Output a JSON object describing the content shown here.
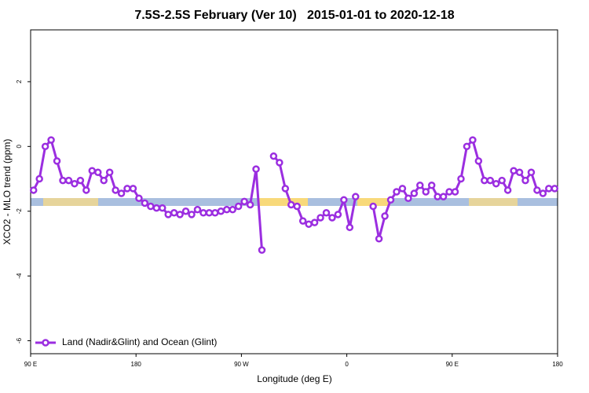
{
  "chart_data": {
    "type": "line",
    "title": "7.5S-2.5S February (Ver 10)   2015-01-01 to 2020-12-18",
    "xlabel": "Longitude (deg E)",
    "ylabel": "XCO2 - MLO trend (ppm)",
    "x": [
      92.5,
      97.5,
      102.5,
      107.5,
      112.5,
      117.5,
      122.5,
      127.5,
      132.5,
      137.5,
      142.5,
      147.5,
      152.5,
      157.5,
      162.5,
      167.5,
      172.5,
      177.5,
      182.5,
      187.5,
      192.5,
      197.5,
      202.5,
      207.5,
      212.5,
      217.5,
      222.5,
      227.5,
      232.5,
      237.5,
      242.5,
      247.5,
      252.5,
      257.5,
      262.5,
      267.5,
      272.5,
      277.5,
      282.5,
      287.5,
      292.5,
      297.5,
      302.5,
      307.5,
      312.5,
      317.5,
      322.5,
      327.5,
      332.5,
      337.5,
      342.5,
      347.5,
      352.5,
      357.5,
      362.5,
      367.5,
      372.5,
      377.5,
      382.5,
      387.5,
      392.5,
      397.5,
      402.5,
      407.5,
      412.5,
      417.5,
      422.5,
      427.5,
      432.5,
      437.5,
      442.5,
      447.5,
      452.5,
      457.5,
      462.5,
      467.5,
      472.5,
      477.5,
      482.5,
      487.5,
      492.5,
      497.5,
      502.5,
      507.5,
      512.5,
      517.5,
      522.5,
      527.5,
      532.5,
      537.5
    ],
    "series": [
      {
        "name": "Land (Nadir&Glint) and Ocean (Glint)",
        "color": "#9b2ee0",
        "values": [
          -1.35,
          -1.0,
          0.0,
          0.2,
          -0.45,
          -1.05,
          -1.05,
          -1.15,
          -1.05,
          -1.35,
          -0.75,
          -0.8,
          -1.05,
          -0.8,
          -1.35,
          -1.45,
          -1.3,
          -1.3,
          -1.6,
          -1.75,
          -1.85,
          -1.9,
          -1.9,
          -2.1,
          -2.05,
          -2.1,
          -2.0,
          -2.1,
          -1.95,
          -2.05,
          -2.05,
          -2.05,
          -2.0,
          -1.95,
          -1.95,
          -1.85,
          -1.7,
          -1.8,
          -0.7,
          -3.2,
          null,
          -0.3,
          -0.5,
          -1.3,
          -1.8,
          -1.85,
          -2.3,
          -2.4,
          -2.35,
          -2.2,
          -2.05,
          -2.2,
          -2.1,
          -1.65,
          -2.5,
          -1.55,
          null,
          null,
          -1.85,
          -2.85,
          -2.15,
          -1.65,
          -1.4,
          -1.3,
          -1.6,
          -1.45,
          -1.2,
          -1.4,
          -1.2,
          -1.55,
          -1.55,
          -1.4,
          -1.4,
          -1.0,
          0.0,
          0.2,
          -0.45,
          -1.05,
          -1.05,
          -1.15,
          -1.05,
          -1.35,
          -0.75,
          -0.8,
          -1.05,
          -0.8,
          -1.35,
          -1.45,
          -1.3,
          -1.3
        ]
      }
    ],
    "xlim": [
      90,
      540
    ],
    "xticks": [
      {
        "value": 90,
        "label": "90 E"
      },
      180,
      {
        "value": 270,
        "label": "90 W"
      },
      {
        "value": 360,
        "label": "0"
      },
      {
        "value": 450,
        "label": "90 E"
      },
      {
        "value": 540,
        "label": "180"
      }
    ],
    "ylim": [
      -6.4,
      3.6
    ],
    "yticks": [
      -6,
      -4,
      -2,
      0,
      2
    ],
    "legend": "bottom-left"
  }
}
